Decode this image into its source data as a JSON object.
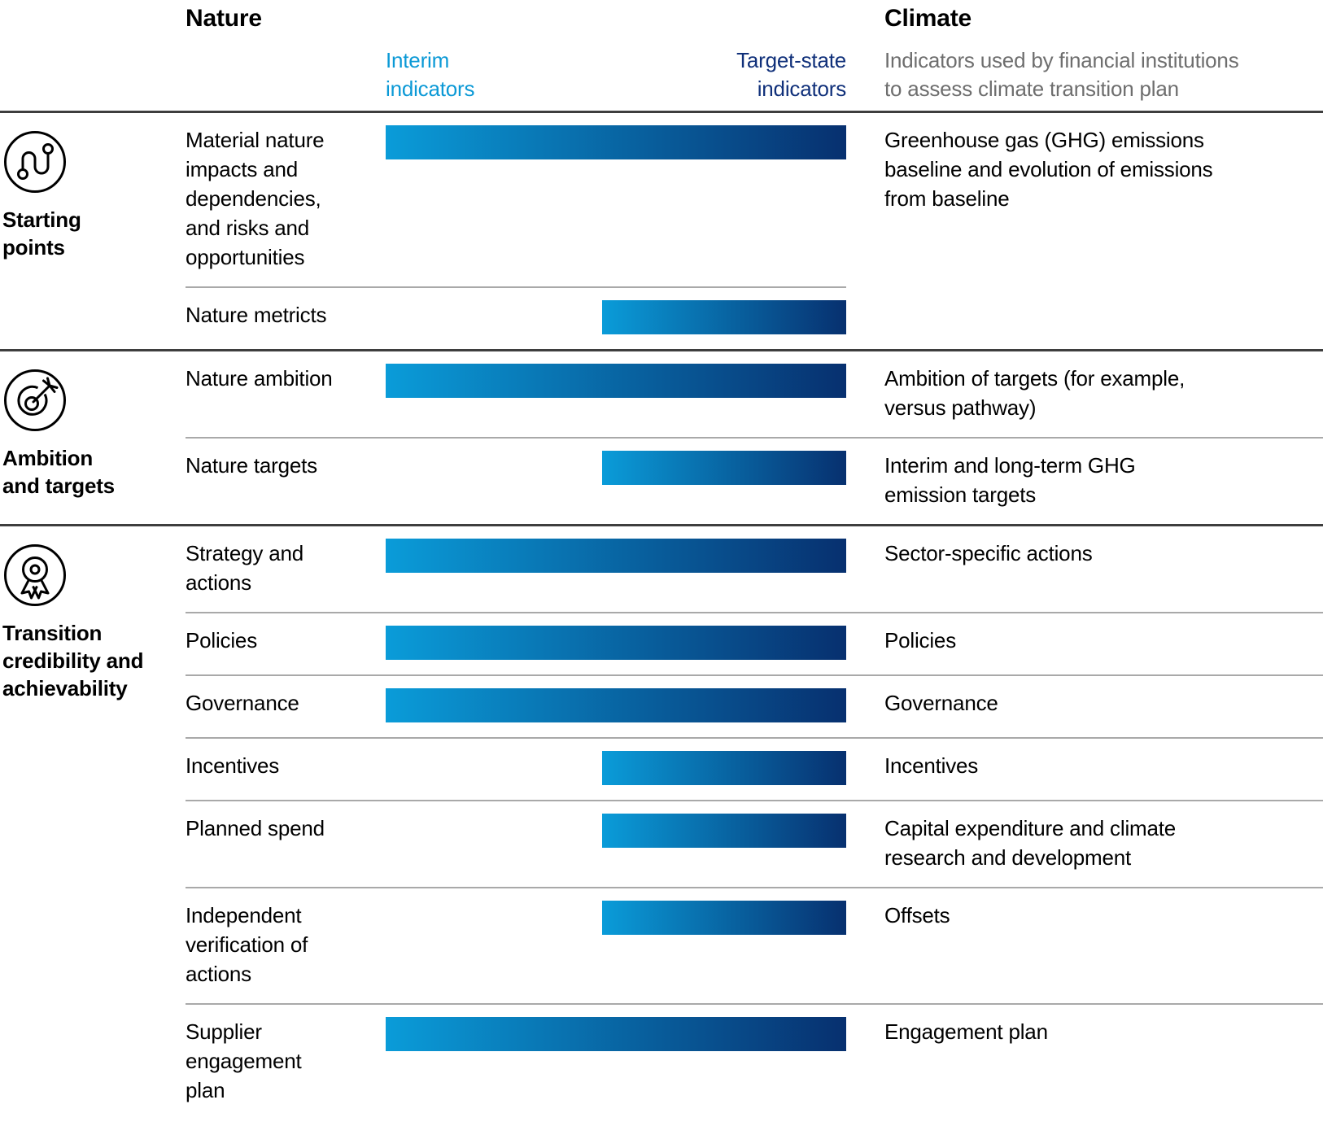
{
  "header": {
    "nature_title": "Nature",
    "climate_title": "Climate",
    "interim_label": "Interim\nindicators",
    "target_label": "Target-state\nindicators",
    "climate_subtitle": "Indicators used by financial institutions\nto assess climate transition plan"
  },
  "colors": {
    "interim_blue": "#0A9CD9",
    "target_navy": "#07306F",
    "interim_text": "#0B99D6",
    "target_text": "#10307A",
    "subtitle_gray": "#6E6E6E",
    "rule_dark": "#3E3E3E",
    "rule_light": "#A9A9A9"
  },
  "legend": {
    "full_bar_meaning": "spans interim to target-state indicators",
    "half_bar_meaning": "target-state indicators only"
  },
  "sections": [
    {
      "id": "starting-points",
      "icon": "route-icon",
      "label": "Starting\npoints",
      "rows": [
        {
          "nature": "Material nature\nimpacts and\ndependencies,\nand risks and\nopportunities",
          "bar": "full",
          "climate": "Greenhouse gas (GHG) emissions\nbaseline and evolution of emissions\nfrom baseline",
          "divider": "short"
        },
        {
          "nature": "Nature metricts",
          "bar": "half",
          "climate": ""
        }
      ]
    },
    {
      "id": "ambition-and-targets",
      "icon": "target-icon",
      "label": "Ambition\nand targets",
      "rows": [
        {
          "nature": "Nature ambition",
          "bar": "full",
          "climate": "Ambition of targets (for example,\nversus pathway)",
          "divider": "full"
        },
        {
          "nature": "Nature targets",
          "bar": "half",
          "climate": "Interim and long-term GHG\nemission targets"
        }
      ]
    },
    {
      "id": "transition-credibility-and-achievability",
      "icon": "award-icon",
      "label": "Transition\ncredibility and\nachievability",
      "rows": [
        {
          "nature": "Strategy and\nactions",
          "bar": "full",
          "climate": "Sector-specific actions",
          "divider": "full"
        },
        {
          "nature": "Policies",
          "bar": "full",
          "climate": "Policies",
          "divider": "full"
        },
        {
          "nature": "Governance",
          "bar": "full",
          "climate": "Governance",
          "divider": "full"
        },
        {
          "nature": "Incentives",
          "bar": "half",
          "climate": "Incentives",
          "divider": "full"
        },
        {
          "nature": "Planned spend",
          "bar": "half",
          "climate": "Capital expenditure and climate\nresearch and development",
          "divider": "full"
        },
        {
          "nature": "Independent\nverification of\nactions",
          "bar": "half",
          "climate": "Offsets",
          "divider": "full"
        },
        {
          "nature": "Supplier\nengagement\nplan",
          "bar": "full",
          "climate": "Engagement plan"
        }
      ]
    }
  ]
}
